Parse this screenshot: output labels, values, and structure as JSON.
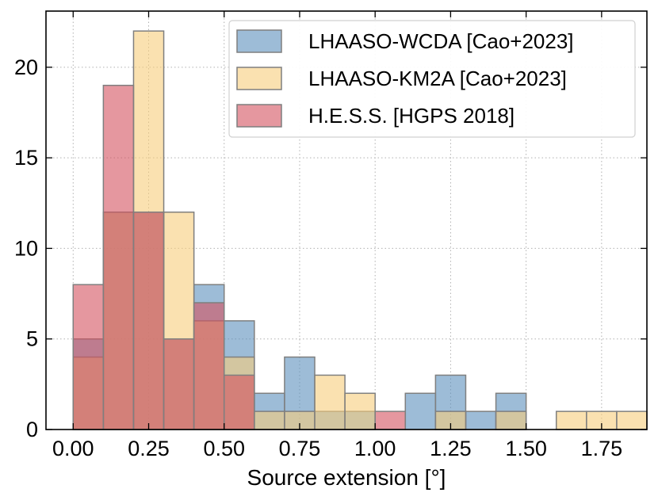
{
  "chart_data": {
    "type": "bar",
    "title": "",
    "xlabel": "Source extension [°]",
    "ylabel": "",
    "xlim": [
      -0.09,
      1.9
    ],
    "ylim": [
      0,
      23.1
    ],
    "bin_width": 0.1,
    "bin_starts": [
      0.0,
      0.1,
      0.2,
      0.3,
      0.4,
      0.5,
      0.6,
      0.7,
      0.8,
      0.9,
      1.0,
      1.1,
      1.2,
      1.3,
      1.4,
      1.5,
      1.6,
      1.7,
      1.8
    ],
    "x_ticks": [
      0.0,
      0.25,
      0.5,
      0.75,
      1.0,
      1.25,
      1.5,
      1.75
    ],
    "x_tick_labels": [
      "0.00",
      "0.25",
      "0.50",
      "0.75",
      "1.00",
      "1.25",
      "1.50",
      "1.75"
    ],
    "y_ticks": [
      0,
      5,
      10,
      15,
      20
    ],
    "y_tick_labels": [
      "0",
      "5",
      "10",
      "15",
      "20"
    ],
    "grid": true,
    "legend_position": "top-right",
    "series": [
      {
        "name": "LHAASO-WCDA [Cao+2023]",
        "color": "#5b8fbc",
        "values": [
          5,
          12,
          12,
          5,
          8,
          6,
          2,
          4,
          1,
          1,
          0,
          2,
          3,
          1,
          2,
          0,
          0,
          0,
          0
        ]
      },
      {
        "name": "LHAASO-KM2A [Cao+2023]",
        "color": "#f7cd7c",
        "values": [
          4,
          12,
          22,
          12,
          6,
          4,
          1,
          1,
          3,
          2,
          0,
          0,
          1,
          0,
          1,
          0,
          1,
          1,
          1
        ]
      },
      {
        "name": "H.E.S.S. [HGPS 2018]",
        "color": "#d4525f",
        "values": [
          8,
          19,
          12,
          5,
          7,
          3,
          0,
          0,
          0,
          0,
          1,
          0,
          0,
          0,
          0,
          0,
          0,
          0,
          0
        ]
      }
    ]
  }
}
